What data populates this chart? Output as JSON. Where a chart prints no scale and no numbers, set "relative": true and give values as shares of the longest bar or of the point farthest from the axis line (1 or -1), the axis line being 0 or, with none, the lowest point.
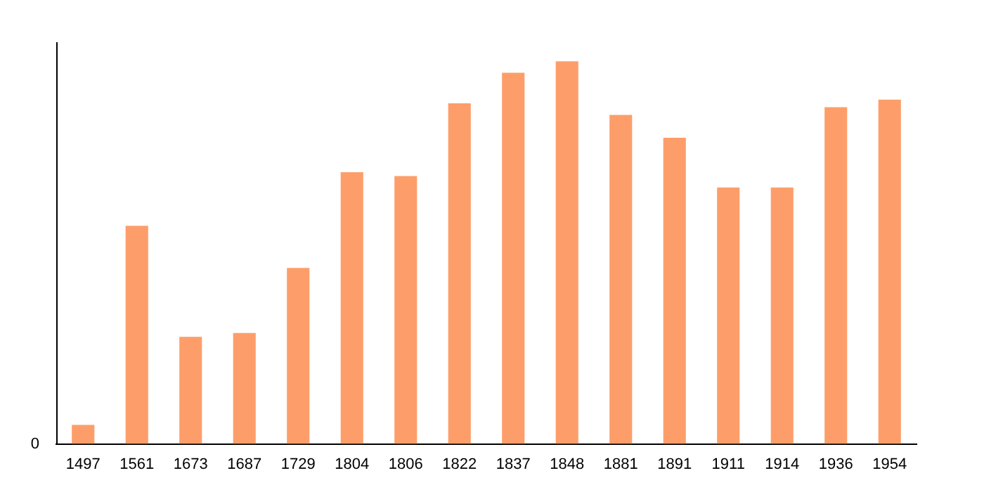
{
  "chart_data": {
    "type": "bar",
    "relative": true,
    "categories": [
      "1497",
      "1561",
      "1673",
      "1687",
      "1729",
      "1804",
      "1806",
      "1822",
      "1837",
      "1848",
      "1881",
      "1891",
      "1911",
      "1914",
      "1936",
      "1954"
    ],
    "values": [
      0.05,
      0.57,
      0.28,
      0.29,
      0.46,
      0.71,
      0.7,
      0.89,
      0.97,
      1,
      0.86,
      0.8,
      0.67,
      0.67,
      0.88,
      0.9
    ],
    "color": "#fd9e6a",
    "grid": false,
    "legend": false,
    "annotations": [
      "0"
    ]
  }
}
